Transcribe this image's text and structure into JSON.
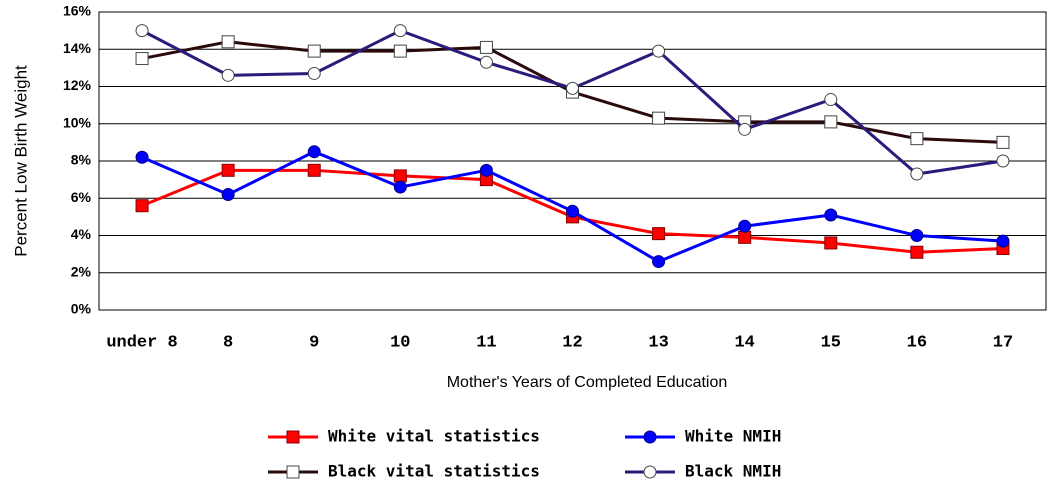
{
  "chart_data": {
    "type": "line",
    "y_label": "Percent Low Birth Weight",
    "x_label": "Mother's Years of Completed Education",
    "categories": [
      "under 8",
      "8",
      "9",
      "10",
      "11",
      "12",
      "13",
      "14",
      "15",
      "16",
      "17"
    ],
    "ylim": [
      0,
      16
    ],
    "yticks": [
      {
        "value": 0,
        "label": "0%"
      },
      {
        "value": 2,
        "label": "2%"
      },
      {
        "value": 4,
        "label": "4%"
      },
      {
        "value": 6,
        "label": "6%"
      },
      {
        "value": 8,
        "label": "8%"
      },
      {
        "value": 10,
        "label": "10%"
      },
      {
        "value": 12,
        "label": "12%"
      },
      {
        "value": 14,
        "label": "14%"
      },
      {
        "value": 16,
        "label": "16%"
      }
    ],
    "grid": true,
    "series": [
      {
        "name": "White vital statistics",
        "color": "#ff0000",
        "marker": "square",
        "marker_fill": "#ff0000",
        "values": [
          5.6,
          7.5,
          7.5,
          7.2,
          7.0,
          5.0,
          4.1,
          3.9,
          3.6,
          3.1,
          3.3
        ]
      },
      {
        "name": "White NMIH",
        "color": "#0000ff",
        "marker": "circle",
        "marker_fill": "#0000ff",
        "values": [
          8.2,
          6.2,
          8.5,
          6.6,
          7.5,
          5.3,
          2.6,
          4.5,
          5.1,
          4.0,
          3.7
        ]
      },
      {
        "name": "Black vital statistics",
        "color": "#2a0a0a",
        "marker": "square",
        "marker_fill": "#ffffff",
        "values": [
          13.5,
          14.4,
          13.9,
          13.9,
          14.1,
          11.7,
          10.3,
          10.1,
          10.1,
          9.2,
          9.0
        ]
      },
      {
        "name": "Black NMIH",
        "color": "#2e1a7a",
        "marker": "circle",
        "marker_fill": "#ffffff",
        "values": [
          15.0,
          12.6,
          12.7,
          15.0,
          13.3,
          11.9,
          13.9,
          9.7,
          11.3,
          7.3,
          8.0
        ]
      }
    ]
  }
}
